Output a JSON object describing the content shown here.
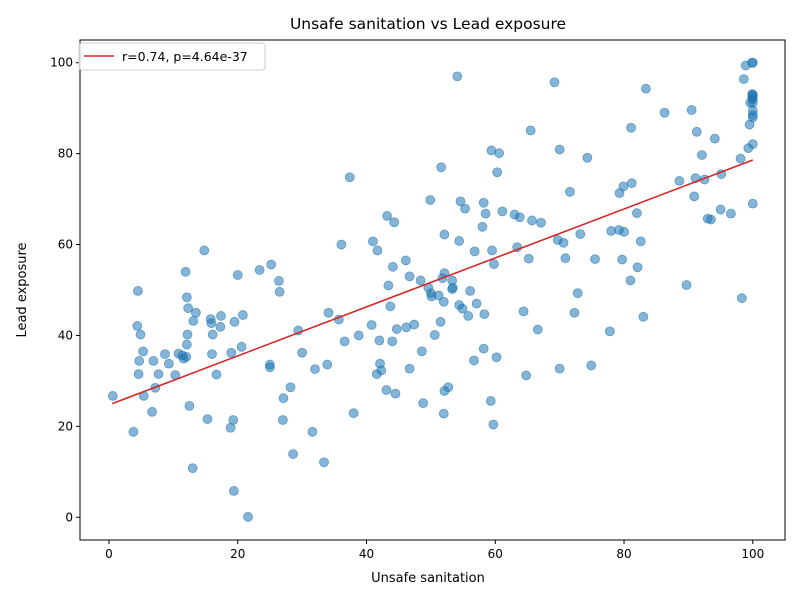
{
  "chart_data": {
    "type": "scatter",
    "title": "Unsafe sanitation vs Lead exposure",
    "xlabel": "Unsafe sanitation",
    "ylabel": "Lead exposure",
    "xlim": [
      -4.5,
      105
    ],
    "ylim": [
      -5,
      105
    ],
    "xticks": [
      0,
      20,
      40,
      60,
      80,
      100
    ],
    "yticks": [
      0,
      20,
      40,
      60,
      80,
      100
    ],
    "grid": false,
    "legend": {
      "placement": "top-left",
      "entries": [
        "r=0.74, p=4.64e-37"
      ]
    },
    "colors": {
      "points": "#1f77b4",
      "fit_line": "#d62728"
    },
    "fit_line": {
      "name": "r=0.74, p=4.64e-37",
      "x": [
        0.5,
        100
      ],
      "y": [
        25,
        78.6
      ]
    },
    "points": [
      [
        0.6,
        26.7
      ],
      [
        3.8,
        18.8
      ],
      [
        4.4,
        42.1
      ],
      [
        4.5,
        49.8
      ],
      [
        4.6,
        31.5
      ],
      [
        4.7,
        34.4
      ],
      [
        4.9,
        40.2
      ],
      [
        5.3,
        36.5
      ],
      [
        5.4,
        26.7
      ],
      [
        6.7,
        23.2
      ],
      [
        6.9,
        34.4
      ],
      [
        7.2,
        28.5
      ],
      [
        7.7,
        31.5
      ],
      [
        8.7,
        35.9
      ],
      [
        9.3,
        33.8
      ],
      [
        10.3,
        31.3
      ],
      [
        10.8,
        36.0
      ],
      [
        11.4,
        35.6
      ],
      [
        11.6,
        34.9
      ],
      [
        11.9,
        54.0
      ],
      [
        12.0,
        35.3
      ],
      [
        12.1,
        48.4
      ],
      [
        12.1,
        38.0
      ],
      [
        12.2,
        40.2
      ],
      [
        12.3,
        46.0
      ],
      [
        12.5,
        24.5
      ],
      [
        13.0,
        10.8
      ],
      [
        13.1,
        43.2
      ],
      [
        13.5,
        45.0
      ],
      [
        14.8,
        58.7
      ],
      [
        15.3,
        21.6
      ],
      [
        15.8,
        43.6
      ],
      [
        15.9,
        42.7
      ],
      [
        16.0,
        35.9
      ],
      [
        16.1,
        40.2
      ],
      [
        16.7,
        31.4
      ],
      [
        17.3,
        41.9
      ],
      [
        17.4,
        44.3
      ],
      [
        18.9,
        19.7
      ],
      [
        19.0,
        36.2
      ],
      [
        19.3,
        21.4
      ],
      [
        19.4,
        5.8
      ],
      [
        19.5,
        43.0
      ],
      [
        20.0,
        53.3
      ],
      [
        20.6,
        37.5
      ],
      [
        20.8,
        44.5
      ],
      [
        21.6,
        0.1
      ],
      [
        23.4,
        54.4
      ],
      [
        25.0,
        33.0
      ],
      [
        25.0,
        33.6
      ],
      [
        25.2,
        55.6
      ],
      [
        26.4,
        52.0
      ],
      [
        26.5,
        49.6
      ],
      [
        27.0,
        21.4
      ],
      [
        27.1,
        26.2
      ],
      [
        28.2,
        28.6
      ],
      [
        28.6,
        13.9
      ],
      [
        29.4,
        41.1
      ],
      [
        30.0,
        36.2
      ],
      [
        31.6,
        18.8
      ],
      [
        32.0,
        32.6
      ],
      [
        33.4,
        12.1
      ],
      [
        33.9,
        33.6
      ],
      [
        34.1,
        45.0
      ],
      [
        35.7,
        43.5
      ],
      [
        36.1,
        60.0
      ],
      [
        36.6,
        38.7
      ],
      [
        37.4,
        74.8
      ],
      [
        38.0,
        22.9
      ],
      [
        38.8,
        40.0
      ],
      [
        40.8,
        42.3
      ],
      [
        41.0,
        60.7
      ],
      [
        41.6,
        31.5
      ],
      [
        41.7,
        58.7
      ],
      [
        42.0,
        38.9
      ],
      [
        42.1,
        33.8
      ],
      [
        42.3,
        32.3
      ],
      [
        43.1,
        28.0
      ],
      [
        43.2,
        66.3
      ],
      [
        43.4,
        51.0
      ],
      [
        43.7,
        46.4
      ],
      [
        44.0,
        38.7
      ],
      [
        44.1,
        55.1
      ],
      [
        44.3,
        64.9
      ],
      [
        44.5,
        27.2
      ],
      [
        44.7,
        41.4
      ],
      [
        46.1,
        56.5
      ],
      [
        46.2,
        41.8
      ],
      [
        46.7,
        32.7
      ],
      [
        46.7,
        53.0
      ],
      [
        47.4,
        42.4
      ],
      [
        48.4,
        52.1
      ],
      [
        48.6,
        36.5
      ],
      [
        48.8,
        25.1
      ],
      [
        49.6,
        50.5
      ],
      [
        49.9,
        69.8
      ],
      [
        50.0,
        49.3
      ],
      [
        50.1,
        48.6
      ],
      [
        50.6,
        40.1
      ],
      [
        51.2,
        48.8
      ],
      [
        51.5,
        43.0
      ],
      [
        51.6,
        77.0
      ],
      [
        51.8,
        52.6
      ],
      [
        52.0,
        47.4
      ],
      [
        52.0,
        22.8
      ],
      [
        52.1,
        27.8
      ],
      [
        52.1,
        53.7
      ],
      [
        52.1,
        62.2
      ],
      [
        52.7,
        28.6
      ],
      [
        53.3,
        50.2
      ],
      [
        53.3,
        52.1
      ],
      [
        53.4,
        50.5
      ],
      [
        54.1,
        97.0
      ],
      [
        54.4,
        60.8
      ],
      [
        54.4,
        46.7
      ],
      [
        54.6,
        69.5
      ],
      [
        54.9,
        45.9
      ],
      [
        55.3,
        67.9
      ],
      [
        55.8,
        44.3
      ],
      [
        56.1,
        49.8
      ],
      [
        56.7,
        34.5
      ],
      [
        56.8,
        58.5
      ],
      [
        57.1,
        47.0
      ],
      [
        58.0,
        63.9
      ],
      [
        58.2,
        37.1
      ],
      [
        58.2,
        69.2
      ],
      [
        58.3,
        44.7
      ],
      [
        58.5,
        66.8
      ],
      [
        59.3,
        25.6
      ],
      [
        59.4,
        80.7
      ],
      [
        59.5,
        58.7
      ],
      [
        59.7,
        20.4
      ],
      [
        59.8,
        55.7
      ],
      [
        60.2,
        35.2
      ],
      [
        60.3,
        75.9
      ],
      [
        60.6,
        80.1
      ],
      [
        61.1,
        67.3
      ],
      [
        63.0,
        66.6
      ],
      [
        63.4,
        59.4
      ],
      [
        63.8,
        66.0
      ],
      [
        64.4,
        45.3
      ],
      [
        64.8,
        31.2
      ],
      [
        65.2,
        56.9
      ],
      [
        65.5,
        85.1
      ],
      [
        65.7,
        65.3
      ],
      [
        66.6,
        41.3
      ],
      [
        67.1,
        64.8
      ],
      [
        69.2,
        95.7
      ],
      [
        69.7,
        61.0
      ],
      [
        70.0,
        32.7
      ],
      [
        70.0,
        80.9
      ],
      [
        70.6,
        60.4
      ],
      [
        70.9,
        57.0
      ],
      [
        71.6,
        71.6
      ],
      [
        72.3,
        45.0
      ],
      [
        72.8,
        49.3
      ],
      [
        73.2,
        62.3
      ],
      [
        74.3,
        79.1
      ],
      [
        74.9,
        33.4
      ],
      [
        75.5,
        56.8
      ],
      [
        77.8,
        40.9
      ],
      [
        78.0,
        63.0
      ],
      [
        79.2,
        63.2
      ],
      [
        79.3,
        71.3
      ],
      [
        79.7,
        56.7
      ],
      [
        79.9,
        72.8
      ],
      [
        80.0,
        62.8
      ],
      [
        81.0,
        52.1
      ],
      [
        81.1,
        85.7
      ],
      [
        81.2,
        73.5
      ],
      [
        82.0,
        66.9
      ],
      [
        82.1,
        55.0
      ],
      [
        82.6,
        60.7
      ],
      [
        83.0,
        44.1
      ],
      [
        83.4,
        94.3
      ],
      [
        86.3,
        89.0
      ],
      [
        88.6,
        74.0
      ],
      [
        89.7,
        51.1
      ],
      [
        90.5,
        89.6
      ],
      [
        90.9,
        70.6
      ],
      [
        91.1,
        74.6
      ],
      [
        91.3,
        84.8
      ],
      [
        92.1,
        79.7
      ],
      [
        92.5,
        74.3
      ],
      [
        93.0,
        65.7
      ],
      [
        93.5,
        65.5
      ],
      [
        94.1,
        83.3
      ],
      [
        95.0,
        67.7
      ],
      [
        95.1,
        75.5
      ],
      [
        96.6,
        66.8
      ],
      [
        98.1,
        78.9
      ],
      [
        98.3,
        48.2
      ],
      [
        98.6,
        96.4
      ],
      [
        98.9,
        99.4
      ],
      [
        99.3,
        81.2
      ],
      [
        99.5,
        86.4
      ],
      [
        99.6,
        91.2
      ],
      [
        99.9,
        100.0
      ],
      [
        99.9,
        93.1
      ],
      [
        99.9,
        92.3
      ],
      [
        100.0,
        100.0
      ],
      [
        100.0,
        93.0
      ],
      [
        100.0,
        92.7
      ],
      [
        100.0,
        92.0
      ],
      [
        100.0,
        91.2
      ],
      [
        100.0,
        89.5
      ],
      [
        100.0,
        88.5
      ],
      [
        100.0,
        88.0
      ],
      [
        100.0,
        82.1
      ],
      [
        100.0,
        69.0
      ]
    ]
  }
}
